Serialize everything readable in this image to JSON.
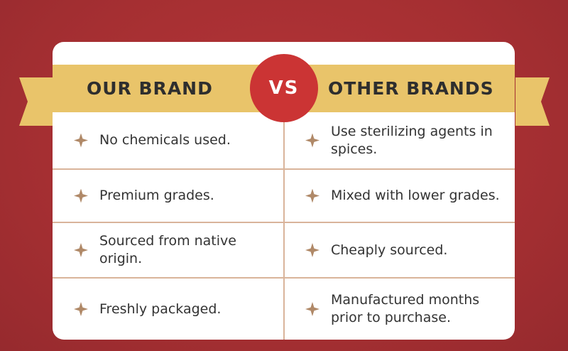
{
  "header": {
    "left": "OUR BRAND",
    "vs": "VS",
    "right": "OTHER BRANDS"
  },
  "rows": [
    {
      "ours": "No chemicals used.",
      "others": "Use sterilizing agents in spices."
    },
    {
      "ours": "Premium grades.",
      "others": "Mixed with lower grades."
    },
    {
      "ours": "Sourced from native origin.",
      "others": "Cheaply sourced."
    },
    {
      "ours": "Freshly packaged.",
      "others": "Manufactured months prior to purchase."
    }
  ],
  "colors": {
    "background": "#a83033",
    "band": "#e9c46a",
    "vs_circle": "#cb3434",
    "divider": "#d9b49a",
    "star": "#b08968"
  }
}
